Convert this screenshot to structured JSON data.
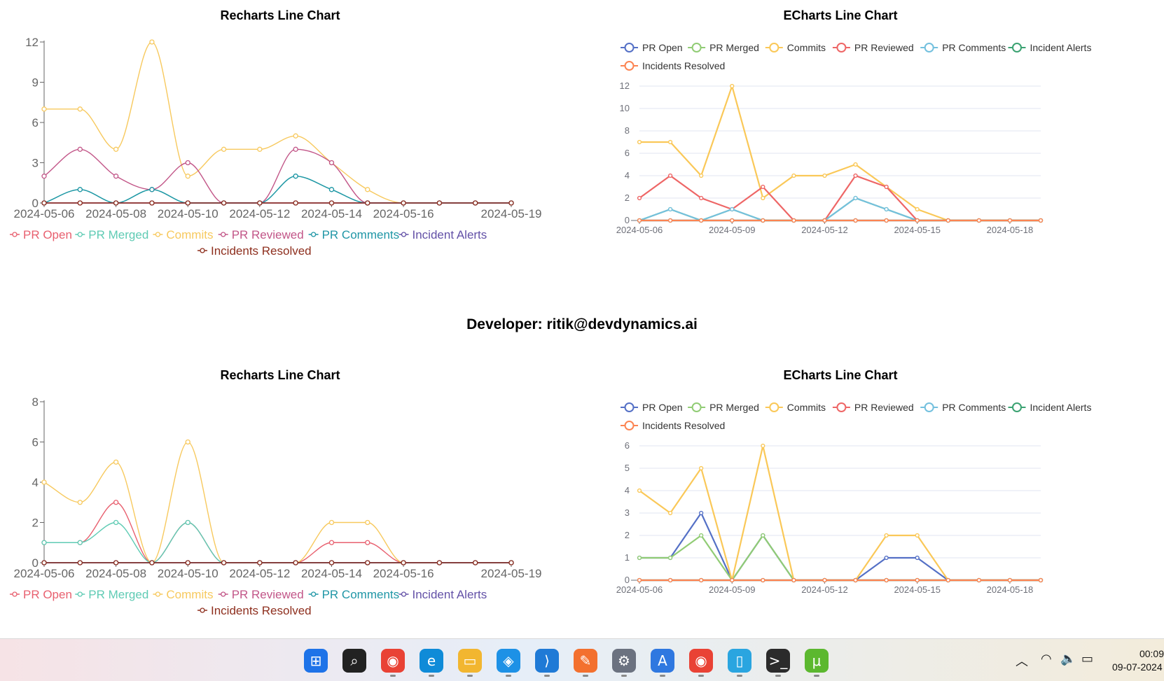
{
  "developer_label": "Developer: ritik@devdynamics.ai",
  "chart_data": [
    {
      "id": "recharts-1",
      "library": "recharts",
      "type": "line",
      "title": "Recharts Line Chart",
      "x": [
        "2024-05-06",
        "2024-05-07",
        "2024-05-08",
        "2024-05-09",
        "2024-05-10",
        "2024-05-11",
        "2024-05-12",
        "2024-05-13",
        "2024-05-14",
        "2024-05-15",
        "2024-05-16",
        "2024-05-17",
        "2024-05-18",
        "2024-05-19"
      ],
      "xticks": [
        "2024-05-06",
        "2024-05-08",
        "2024-05-10",
        "2024-05-12",
        "2024-05-14",
        "2024-05-16",
        "2024-05-19"
      ],
      "yticks": [
        0,
        3,
        6,
        9,
        12
      ],
      "ylim": [
        0,
        12
      ],
      "grid": false,
      "legend_position": "bottom",
      "series": [
        {
          "name": "PR Open",
          "color": "#e8606f",
          "values": [
            0,
            0,
            0,
            0,
            0,
            0,
            0,
            0,
            0,
            0,
            0,
            0,
            0,
            0
          ]
        },
        {
          "name": "PR Merged",
          "color": "#5fcbb4",
          "values": [
            0,
            1,
            0,
            1,
            0,
            0,
            0,
            2,
            1,
            0,
            0,
            0,
            0,
            0
          ]
        },
        {
          "name": "Commits",
          "color": "#f7c95e",
          "values": [
            7,
            7,
            4,
            12,
            2,
            4,
            4,
            5,
            3,
            1,
            0,
            0,
            0,
            0
          ]
        },
        {
          "name": "PR Reviewed",
          "color": "#c25688",
          "values": [
            2,
            4,
            2,
            1,
            3,
            0,
            0,
            4,
            3,
            0,
            0,
            0,
            0,
            0
          ]
        },
        {
          "name": "PR Comments",
          "color": "#1f96a6",
          "values": [
            0,
            1,
            0,
            1,
            0,
            0,
            0,
            2,
            1,
            0,
            0,
            0,
            0,
            0
          ]
        },
        {
          "name": "Incident Alerts",
          "color": "#6351a7",
          "values": [
            0,
            0,
            0,
            0,
            0,
            0,
            0,
            0,
            0,
            0,
            0,
            0,
            0,
            0
          ]
        },
        {
          "name": "Incidents Resolved",
          "color": "#8e2f1e",
          "values": [
            0,
            0,
            0,
            0,
            0,
            0,
            0,
            0,
            0,
            0,
            0,
            0,
            0,
            0
          ]
        }
      ]
    },
    {
      "id": "echarts-1",
      "library": "echarts",
      "type": "line",
      "title": "ECharts Line Chart",
      "x": [
        "2024-05-06",
        "2024-05-07",
        "2024-05-08",
        "2024-05-09",
        "2024-05-10",
        "2024-05-11",
        "2024-05-12",
        "2024-05-13",
        "2024-05-14",
        "2024-05-15",
        "2024-05-16",
        "2024-05-17",
        "2024-05-18",
        "2024-05-19"
      ],
      "xticks": [
        "2024-05-06",
        "2024-05-09",
        "2024-05-12",
        "2024-05-15",
        "2024-05-18"
      ],
      "yticks": [
        0,
        2,
        4,
        6,
        8,
        10,
        12
      ],
      "ylim": [
        0,
        12
      ],
      "grid": true,
      "legend_position": "top",
      "series": [
        {
          "name": "PR Open",
          "color": "#5470c6",
          "values": [
            0,
            0,
            0,
            0,
            0,
            0,
            0,
            0,
            0,
            0,
            0,
            0,
            0,
            0
          ]
        },
        {
          "name": "PR Merged",
          "color": "#91cc75",
          "values": [
            0,
            1,
            0,
            1,
            0,
            0,
            0,
            2,
            1,
            0,
            0,
            0,
            0,
            0
          ]
        },
        {
          "name": "Commits",
          "color": "#fac858",
          "values": [
            7,
            7,
            4,
            12,
            2,
            4,
            4,
            5,
            3,
            1,
            0,
            0,
            0,
            0
          ]
        },
        {
          "name": "PR Reviewed",
          "color": "#ee6666",
          "values": [
            2,
            4,
            2,
            1,
            3,
            0,
            0,
            4,
            3,
            0,
            0,
            0,
            0,
            0
          ]
        },
        {
          "name": "PR Comments",
          "color": "#73c0de",
          "values": [
            0,
            1,
            0,
            1,
            0,
            0,
            0,
            2,
            1,
            0,
            0,
            0,
            0,
            0
          ]
        },
        {
          "name": "Incident Alerts",
          "color": "#3ba272",
          "values": [
            0,
            0,
            0,
            0,
            0,
            0,
            0,
            0,
            0,
            0,
            0,
            0,
            0,
            0
          ]
        },
        {
          "name": "Incidents Resolved",
          "color": "#fc8452",
          "values": [
            0,
            0,
            0,
            0,
            0,
            0,
            0,
            0,
            0,
            0,
            0,
            0,
            0,
            0
          ]
        }
      ]
    },
    {
      "id": "recharts-2",
      "library": "recharts",
      "type": "line",
      "title": "Recharts Line Chart",
      "x": [
        "2024-05-06",
        "2024-05-07",
        "2024-05-08",
        "2024-05-09",
        "2024-05-10",
        "2024-05-11",
        "2024-05-12",
        "2024-05-13",
        "2024-05-14",
        "2024-05-15",
        "2024-05-16",
        "2024-05-17",
        "2024-05-18",
        "2024-05-19"
      ],
      "xticks": [
        "2024-05-06",
        "2024-05-08",
        "2024-05-10",
        "2024-05-12",
        "2024-05-14",
        "2024-05-16",
        "2024-05-19"
      ],
      "yticks": [
        0,
        2,
        4,
        6,
        8
      ],
      "ylim": [
        0,
        8
      ],
      "grid": false,
      "legend_position": "bottom",
      "series": [
        {
          "name": "PR Open",
          "color": "#e8606f",
          "values": [
            1,
            1,
            3,
            0,
            2,
            0,
            0,
            0,
            1,
            1,
            0,
            0,
            0,
            0
          ]
        },
        {
          "name": "PR Merged",
          "color": "#5fcbb4",
          "values": [
            1,
            1,
            2,
            0,
            2,
            0,
            0,
            0,
            0,
            0,
            0,
            0,
            0,
            0
          ]
        },
        {
          "name": "Commits",
          "color": "#f7c95e",
          "values": [
            4,
            3,
            5,
            0,
            6,
            0,
            0,
            0,
            2,
            2,
            0,
            0,
            0,
            0
          ]
        },
        {
          "name": "PR Reviewed",
          "color": "#c25688",
          "values": [
            0,
            0,
            0,
            0,
            0,
            0,
            0,
            0,
            0,
            0,
            0,
            0,
            0,
            0
          ]
        },
        {
          "name": "PR Comments",
          "color": "#1f96a6",
          "values": [
            0,
            0,
            0,
            0,
            0,
            0,
            0,
            0,
            0,
            0,
            0,
            0,
            0,
            0
          ]
        },
        {
          "name": "Incident Alerts",
          "color": "#6351a7",
          "values": [
            0,
            0,
            0,
            0,
            0,
            0,
            0,
            0,
            0,
            0,
            0,
            0,
            0,
            0
          ]
        },
        {
          "name": "Incidents Resolved",
          "color": "#8e2f1e",
          "values": [
            0,
            0,
            0,
            0,
            0,
            0,
            0,
            0,
            0,
            0,
            0,
            0,
            0,
            0
          ]
        }
      ]
    },
    {
      "id": "echarts-2",
      "library": "echarts",
      "type": "line",
      "title": "ECharts Line Chart",
      "x": [
        "2024-05-06",
        "2024-05-07",
        "2024-05-08",
        "2024-05-09",
        "2024-05-10",
        "2024-05-11",
        "2024-05-12",
        "2024-05-13",
        "2024-05-14",
        "2024-05-15",
        "2024-05-16",
        "2024-05-17",
        "2024-05-18",
        "2024-05-19"
      ],
      "xticks": [
        "2024-05-06",
        "2024-05-09",
        "2024-05-12",
        "2024-05-15",
        "2024-05-18"
      ],
      "yticks": [
        0,
        1,
        2,
        3,
        4,
        5,
        6
      ],
      "ylim": [
        0,
        6
      ],
      "grid": true,
      "legend_position": "top",
      "series": [
        {
          "name": "PR Open",
          "color": "#5470c6",
          "values": [
            1,
            1,
            3,
            0,
            2,
            0,
            0,
            0,
            1,
            1,
            0,
            0,
            0,
            0
          ]
        },
        {
          "name": "PR Merged",
          "color": "#91cc75",
          "values": [
            1,
            1,
            2,
            0,
            2,
            0,
            0,
            0,
            0,
            0,
            0,
            0,
            0,
            0
          ]
        },
        {
          "name": "Commits",
          "color": "#fac858",
          "values": [
            4,
            3,
            5,
            0,
            6,
            0,
            0,
            0,
            2,
            2,
            0,
            0,
            0,
            0
          ]
        },
        {
          "name": "PR Reviewed",
          "color": "#ee6666",
          "values": [
            0,
            0,
            0,
            0,
            0,
            0,
            0,
            0,
            0,
            0,
            0,
            0,
            0,
            0
          ]
        },
        {
          "name": "PR Comments",
          "color": "#73c0de",
          "values": [
            0,
            0,
            0,
            0,
            0,
            0,
            0,
            0,
            0,
            0,
            0,
            0,
            0,
            0
          ]
        },
        {
          "name": "Incident Alerts",
          "color": "#3ba272",
          "values": [
            0,
            0,
            0,
            0,
            0,
            0,
            0,
            0,
            0,
            0,
            0,
            0,
            0,
            0
          ]
        },
        {
          "name": "Incidents Resolved",
          "color": "#fc8452",
          "values": [
            0,
            0,
            0,
            0,
            0,
            0,
            0,
            0,
            0,
            0,
            0,
            0,
            0,
            0
          ]
        }
      ]
    }
  ],
  "taskbar": {
    "apps": [
      {
        "icon": "windows-start-icon",
        "glyph": "⊞",
        "color": "#1e73e8"
      },
      {
        "icon": "search-icon",
        "glyph": "⌕",
        "color": "#222222"
      },
      {
        "icon": "chrome-icon",
        "glyph": "◉",
        "color": "#e94235"
      },
      {
        "icon": "edge-icon",
        "glyph": "e",
        "color": "#0f8bd8"
      },
      {
        "icon": "file-explorer-icon",
        "glyph": "▭",
        "color": "#f2b630"
      },
      {
        "icon": "docker-icon",
        "glyph": "◈",
        "color": "#1d91e6"
      },
      {
        "icon": "vscode-icon",
        "glyph": "⟩",
        "color": "#1f7ad6"
      },
      {
        "icon": "postman-icon",
        "glyph": "✎",
        "color": "#f3702e"
      },
      {
        "icon": "settings-gear-icon",
        "glyph": "⚙",
        "color": "#6b7280"
      },
      {
        "icon": "app-store-icon",
        "glyph": "A",
        "color": "#2f78e0"
      },
      {
        "icon": "chrome-profile-icon",
        "glyph": "◉",
        "color": "#e94235"
      },
      {
        "icon": "notepad-icon",
        "glyph": "▯",
        "color": "#2aa5e0"
      },
      {
        "icon": "terminal-icon",
        "glyph": ">_",
        "color": "#2b2b2b"
      },
      {
        "icon": "utorrent-icon",
        "glyph": "μ",
        "color": "#5cb82f"
      }
    ],
    "tray_icons": [
      "chevron-up-icon",
      "wifi-icon",
      "volume-icon",
      "battery-icon"
    ],
    "time": "00:09",
    "date": "09-07-2024"
  }
}
